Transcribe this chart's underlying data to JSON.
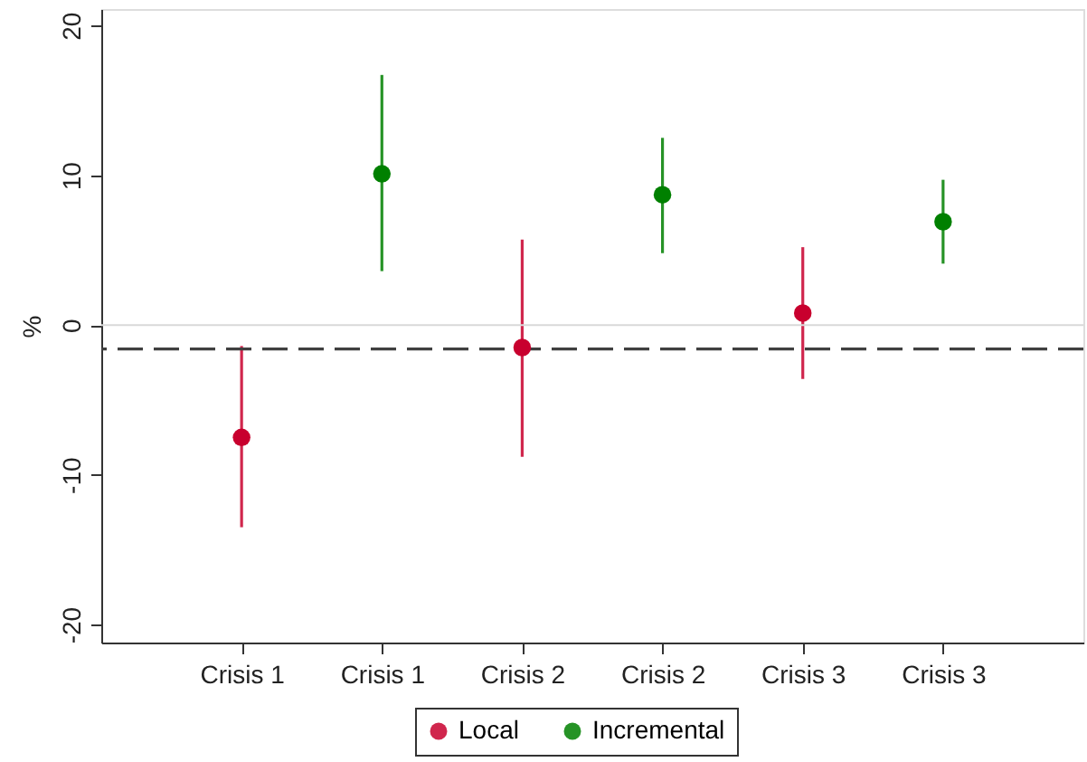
{
  "chart_data": {
    "type": "scatter",
    "ylabel": "%",
    "categories": [
      "Crisis 1",
      "Crisis 1",
      "Crisis 2",
      "Crisis 2",
      "Crisis 3",
      "Crisis 3"
    ],
    "series": [
      {
        "name": "Local",
        "color": "#c8002e",
        "values": [
          -7.5,
          null,
          -1.5,
          null,
          0.8,
          null
        ],
        "errors": [
          [
            -13.5,
            -1.4
          ],
          null,
          [
            -8.8,
            5.7
          ],
          null,
          [
            -3.6,
            5.2
          ],
          null
        ]
      },
      {
        "name": "Incremental",
        "color": "#008000",
        "values": [
          null,
          10.1,
          null,
          8.7,
          null,
          6.9
        ],
        "errors": [
          null,
          [
            3.6,
            16.7
          ],
          null,
          [
            4.8,
            12.5
          ],
          null,
          [
            4.1,
            9.7
          ]
        ]
      }
    ],
    "ylim": [
      -21.2,
      21.1
    ],
    "yticks": [
      -20,
      -10,
      0,
      10,
      20
    ],
    "ref_lines": [
      {
        "axis": "y",
        "value": 0,
        "color": "#d9d9d9"
      },
      {
        "axis": "y",
        "value": -1.6,
        "color": "#404040",
        "line_style": "dashed"
      }
    ],
    "grid": false,
    "legend": "bottom",
    "marker": "circle"
  }
}
